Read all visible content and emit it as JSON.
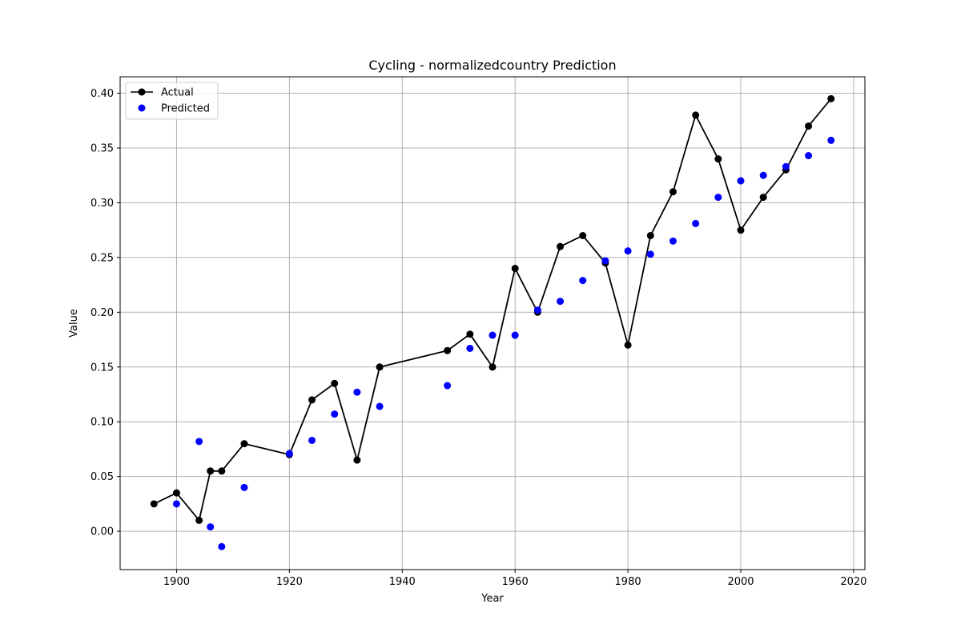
{
  "chart_data": {
    "type": "scatter",
    "title": "Cycling - normalizedcountry Prediction",
    "xlabel": "Year",
    "ylabel": "Value",
    "xlim": [
      1890,
      2022
    ],
    "ylim": [
      -0.035,
      0.415
    ],
    "xticks": [
      1900,
      1920,
      1940,
      1960,
      1980,
      2000,
      2020
    ],
    "yticks": [
      0.0,
      0.05,
      0.1,
      0.15,
      0.2,
      0.25,
      0.3,
      0.35,
      0.4
    ],
    "ytick_labels": [
      "0.00",
      "0.05",
      "0.10",
      "0.15",
      "0.20",
      "0.25",
      "0.30",
      "0.35",
      "0.40"
    ],
    "grid": true,
    "legend_position": "top-left",
    "series": [
      {
        "name": "Actual",
        "style": "line-marker",
        "color": "#000000",
        "x": [
          1896,
          1900,
          1904,
          1906,
          1908,
          1912,
          1920,
          1924,
          1928,
          1932,
          1936,
          1948,
          1952,
          1956,
          1960,
          1964,
          1968,
          1972,
          1976,
          1980,
          1984,
          1988,
          1992,
          1996,
          2000,
          2004,
          2008,
          2012,
          2016
        ],
        "y": [
          0.025,
          0.035,
          0.01,
          0.055,
          0.055,
          0.08,
          0.07,
          0.12,
          0.135,
          0.065,
          0.15,
          0.165,
          0.18,
          0.15,
          0.24,
          0.2,
          0.26,
          0.27,
          0.245,
          0.17,
          0.27,
          0.31,
          0.38,
          0.34,
          0.275,
          0.305,
          0.33,
          0.37,
          0.395
        ]
      },
      {
        "name": "Predicted",
        "style": "marker",
        "color": "#0000ff",
        "x": [
          1900,
          1904,
          1906,
          1908,
          1912,
          1920,
          1924,
          1928,
          1932,
          1936,
          1948,
          1952,
          1956,
          1960,
          1964,
          1968,
          1972,
          1976,
          1980,
          1984,
          1988,
          1992,
          1996,
          2000,
          2004,
          2008,
          2012,
          2016
        ],
        "y": [
          0.025,
          0.082,
          0.004,
          -0.014,
          0.04,
          0.071,
          0.083,
          0.107,
          0.127,
          0.114,
          0.133,
          0.167,
          0.179,
          0.179,
          0.202,
          0.21,
          0.229,
          0.247,
          0.256,
          0.253,
          0.265,
          0.281,
          0.305,
          0.32,
          0.325,
          0.333,
          0.343,
          0.357
        ]
      }
    ]
  }
}
